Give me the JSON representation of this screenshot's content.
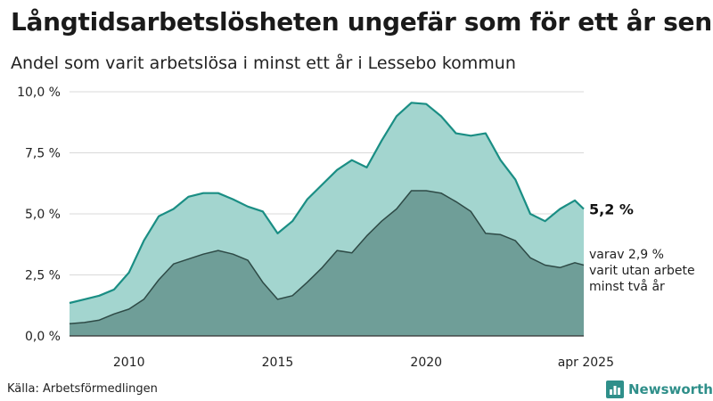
{
  "title": "Långtidsarbetslösheten ungefär som för ett år sen",
  "subtitle": "Andel som varit arbetslösa i minst ett år i Lessebo kommun",
  "source": "Källa: Arbetsförmedlingen",
  "brand": {
    "name": "Newsworthy",
    "icon": "newsworthy-logo-icon",
    "color": "#2f8f8a"
  },
  "chart_data": {
    "type": "area",
    "xlim": [
      2008.0,
      2025.3
    ],
    "ylim": [
      0,
      10
    ],
    "yticks": [
      {
        "value": 0,
        "label": "0,0 %"
      },
      {
        "value": 2.5,
        "label": "2,5 %"
      },
      {
        "value": 5,
        "label": "5,0 %"
      },
      {
        "value": 7.5,
        "label": "7,5 %"
      },
      {
        "value": 10,
        "label": "10,0 %"
      }
    ],
    "xticks": [
      {
        "value": 2010,
        "label": "2010"
      },
      {
        "value": 2015,
        "label": "2015"
      },
      {
        "value": 2020,
        "label": "2020"
      },
      {
        "value": 2025.3,
        "label": "apr 2025"
      }
    ],
    "grid": true,
    "colors": {
      "total_fill": "#a3d5cf",
      "total_line": "#1a8e84",
      "two_year_fill": "#6f9e98",
      "two_year_line": "#2e4a46",
      "grid": "#d9d9d9",
      "baseline": "#333333"
    },
    "series": [
      {
        "id": "total",
        "x": [
          2008.0,
          2008.5,
          2009.0,
          2009.5,
          2010.0,
          2010.5,
          2011.0,
          2011.5,
          2012.0,
          2012.5,
          2013.0,
          2013.5,
          2014.0,
          2014.5,
          2015.0,
          2015.5,
          2016.0,
          2016.5,
          2017.0,
          2017.5,
          2018.0,
          2018.5,
          2019.0,
          2019.5,
          2020.0,
          2020.5,
          2021.0,
          2021.5,
          2022.0,
          2022.5,
          2023.0,
          2023.5,
          2024.0,
          2024.5,
          2025.0,
          2025.3
        ],
        "values": [
          1.35,
          1.5,
          1.65,
          1.9,
          2.6,
          3.9,
          4.9,
          5.2,
          5.7,
          5.85,
          5.85,
          5.6,
          5.3,
          5.1,
          4.2,
          4.7,
          5.6,
          6.2,
          6.8,
          7.2,
          6.9,
          8.0,
          9.0,
          9.55,
          9.5,
          9.0,
          8.3,
          8.2,
          8.3,
          7.2,
          6.4,
          5.0,
          4.7,
          5.2,
          5.55,
          5.2
        ],
        "end_label": "5,2 %"
      },
      {
        "id": "two_year",
        "x": [
          2008.0,
          2008.5,
          2009.0,
          2009.5,
          2010.0,
          2010.5,
          2011.0,
          2011.5,
          2012.0,
          2012.5,
          2013.0,
          2013.5,
          2014.0,
          2014.5,
          2015.0,
          2015.5,
          2016.0,
          2016.5,
          2017.0,
          2017.5,
          2018.0,
          2018.5,
          2019.0,
          2019.5,
          2020.0,
          2020.5,
          2021.0,
          2021.5,
          2022.0,
          2022.5,
          2023.0,
          2023.5,
          2024.0,
          2024.5,
          2025.0,
          2025.3
        ],
        "values": [
          0.5,
          0.55,
          0.65,
          0.9,
          1.1,
          1.5,
          2.3,
          2.95,
          3.15,
          3.35,
          3.5,
          3.35,
          3.1,
          2.2,
          1.5,
          1.65,
          2.2,
          2.8,
          3.5,
          3.4,
          4.1,
          4.7,
          5.2,
          5.95,
          5.95,
          5.85,
          5.5,
          5.1,
          4.2,
          4.15,
          3.9,
          3.2,
          2.9,
          2.8,
          3.0,
          2.9
        ],
        "end_label": [
          "varav 2,9 %",
          "varit utan arbete",
          "minst två år"
        ]
      }
    ]
  }
}
